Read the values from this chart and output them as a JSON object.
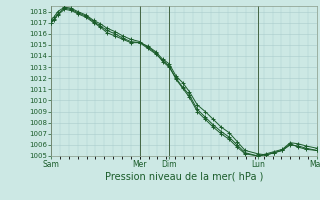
{
  "background_color": "#cce8e4",
  "grid_color": "#aacccc",
  "line_color": "#1a5c2a",
  "marker_color": "#1a5c2a",
  "xlabel": "Pression niveau de la mer( hPa )",
  "ylim": [
    1005,
    1018.5
  ],
  "ytick_min": 1005,
  "ytick_max": 1018,
  "vline_color": "#446644",
  "vline_positions": [
    0.0,
    0.333,
    0.444,
    0.778,
    1.0
  ],
  "series1_x": [
    0.0,
    0.01,
    0.025,
    0.05,
    0.075,
    0.1,
    0.13,
    0.16,
    0.185,
    0.21,
    0.24,
    0.27,
    0.3,
    0.333,
    0.363,
    0.393,
    0.42,
    0.444,
    0.47,
    0.495,
    0.52,
    0.55,
    0.58,
    0.61,
    0.64,
    0.67,
    0.7,
    0.73,
    0.778,
    0.81,
    0.84,
    0.87,
    0.9,
    0.93,
    0.96,
    1.0
  ],
  "series1_y": [
    1017.0,
    1017.2,
    1017.7,
    1018.2,
    1018.1,
    1017.8,
    1017.5,
    1017.0,
    1016.6,
    1016.1,
    1015.8,
    1015.5,
    1015.2,
    1015.2,
    1014.9,
    1014.4,
    1013.7,
    1013.3,
    1012.2,
    1011.6,
    1010.8,
    1009.6,
    1009.0,
    1008.3,
    1007.6,
    1007.1,
    1006.3,
    1005.5,
    1005.2,
    1005.1,
    1005.3,
    1005.5,
    1006.1,
    1005.8,
    1005.6,
    1005.5
  ],
  "series2_x": [
    0.0,
    0.01,
    0.025,
    0.05,
    0.075,
    0.1,
    0.13,
    0.16,
    0.185,
    0.21,
    0.24,
    0.27,
    0.3,
    0.333,
    0.363,
    0.393,
    0.42,
    0.444,
    0.47,
    0.495,
    0.52,
    0.55,
    0.58,
    0.61,
    0.64,
    0.67,
    0.7,
    0.73,
    0.778,
    0.81,
    0.84,
    0.87,
    0.9,
    0.93,
    0.96,
    1.0
  ],
  "series2_y": [
    1017.2,
    1017.5,
    1018.0,
    1018.4,
    1018.3,
    1018.0,
    1017.7,
    1017.2,
    1016.9,
    1016.5,
    1016.2,
    1015.8,
    1015.5,
    1015.3,
    1014.8,
    1014.3,
    1013.5,
    1013.0,
    1012.0,
    1011.2,
    1010.5,
    1009.2,
    1008.5,
    1007.8,
    1007.2,
    1006.7,
    1006.0,
    1005.3,
    1005.0,
    1005.2,
    1005.4,
    1005.6,
    1006.2,
    1006.1,
    1005.9,
    1005.7
  ],
  "series3_x": [
    0.0,
    0.01,
    0.025,
    0.05,
    0.075,
    0.1,
    0.13,
    0.16,
    0.185,
    0.21,
    0.24,
    0.27,
    0.3,
    0.333,
    0.363,
    0.393,
    0.42,
    0.444,
    0.47,
    0.495,
    0.52,
    0.55,
    0.58,
    0.61,
    0.64,
    0.67,
    0.7,
    0.73,
    0.778,
    0.81,
    0.84,
    0.87,
    0.9,
    0.93,
    0.96,
    1.0
  ],
  "series3_y": [
    1017.0,
    1017.3,
    1017.8,
    1018.3,
    1018.2,
    1017.9,
    1017.6,
    1017.1,
    1016.7,
    1016.3,
    1016.0,
    1015.6,
    1015.3,
    1015.2,
    1014.7,
    1014.2,
    1013.6,
    1013.1,
    1011.9,
    1011.1,
    1010.3,
    1009.0,
    1008.3,
    1007.6,
    1007.0,
    1006.5,
    1005.8,
    1005.2,
    1005.0,
    1005.1,
    1005.3,
    1005.5,
    1006.0,
    1005.9,
    1005.7,
    1005.5
  ],
  "xtick_positions": [
    0.0,
    0.333,
    0.444,
    0.778,
    1.0
  ],
  "xtick_labels": [
    "Sam",
    "Mer",
    "Dim",
    "Lun",
    "Mar"
  ],
  "figsize": [
    3.2,
    2.0
  ],
  "dpi": 100
}
